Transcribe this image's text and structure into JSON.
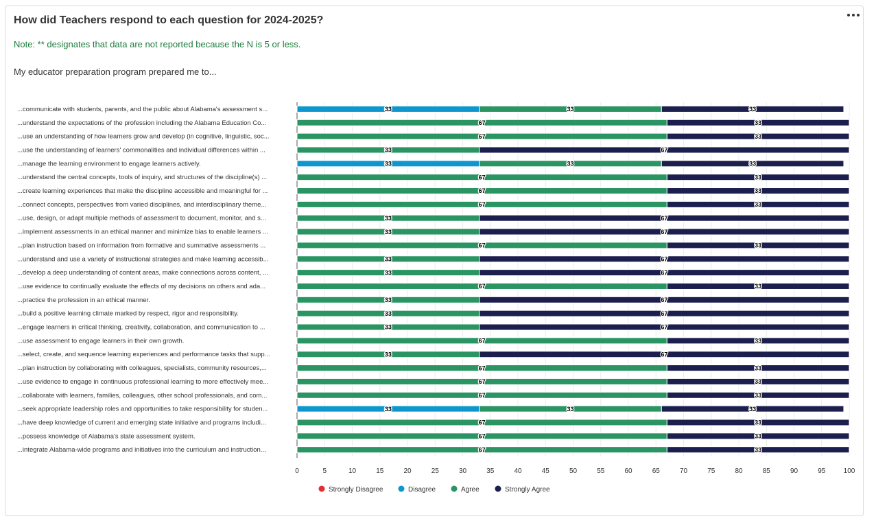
{
  "header": {
    "title": "How did Teachers respond to each question for 2024-2025?",
    "note": "Note: ** designates that data are not reported because the N is 5 or less.",
    "prompt": "My educator preparation program prepared me to..."
  },
  "colors": {
    "strongly_disagree": "#e02f36",
    "disagree": "#0e97cf",
    "agree": "#2a9463",
    "strongly_agree": "#1c1f4d",
    "note": "#1a7a3a"
  },
  "chart_data": {
    "type": "bar",
    "orientation": "horizontal",
    "stacked": true,
    "xlim": [
      0,
      100
    ],
    "xticks": [
      0,
      5,
      10,
      15,
      20,
      25,
      30,
      35,
      40,
      45,
      50,
      55,
      60,
      65,
      70,
      75,
      80,
      85,
      90,
      95,
      100
    ],
    "legend_position": "bottom",
    "categories": [
      "...communicate with students, parents, and the public about Alabama's assessment s...",
      "...understand the expectations of the profession including the Alabama Education Co...",
      "...use an understanding of how learners grow and develop (in cognitive, linguistic, soc...",
      "...use the understanding of learners' commonalities and individual differences within ...",
      "...manage the learning environment to engage learners actively.",
      "...understand the central concepts, tools of inquiry, and structures of the discipline(s) ...",
      "...create learning experiences that make the discipline accessible and meaningful for ...",
      "...connect concepts, perspectives from varied disciplines, and interdisciplinary theme...",
      "...use, design, or adapt multiple methods of assessment to document, monitor, and s...",
      "...implement assessments in an ethical manner and minimize bias to enable learners ...",
      "...plan instruction based on information from formative and summative assessments ...",
      "...understand and use a variety of instructional strategies and make learning accessib...",
      "...develop a deep understanding of content areas, make connections across content, ...",
      "...use evidence to continually evaluate the effects of my decisions on others and ada...",
      "...practice the profession in an ethical manner.",
      "...build a positive learning climate marked by respect, rigor and responsibility.",
      "...engage learners in critical thinking, creativity, collaboration, and communication to ...",
      "...use assessment to engage learners in their own growth.",
      "...select, create, and sequence learning experiences and performance tasks that supp...",
      "...plan instruction by collaborating with colleagues, specialists, community resources,...",
      "...use evidence to engage in continuous professional learning to more effectively mee...",
      "...collaborate with learners, families, colleagues, other school professionals, and com...",
      "...seek appropriate leadership roles and opportunities to take responsibility for studen...",
      "...have deep knowledge of current and emerging state initiative and programs includi...",
      "...possess knowledge of Alabama's state assessment system.",
      "...integrate Alabama-wide programs and initiatives into the curriculum and instruction..."
    ],
    "series": [
      {
        "name": "Strongly Disagree",
        "color_key": "strongly_disagree",
        "values": [
          0,
          0,
          0,
          0,
          0,
          0,
          0,
          0,
          0,
          0,
          0,
          0,
          0,
          0,
          0,
          0,
          0,
          0,
          0,
          0,
          0,
          0,
          0,
          0,
          0,
          0
        ]
      },
      {
        "name": "Disagree",
        "color_key": "disagree",
        "values": [
          33,
          0,
          0,
          0,
          33,
          0,
          0,
          0,
          0,
          0,
          0,
          0,
          0,
          0,
          0,
          0,
          0,
          0,
          0,
          0,
          0,
          0,
          33,
          0,
          0,
          0
        ]
      },
      {
        "name": "Agree",
        "color_key": "agree",
        "values": [
          33,
          67,
          67,
          33,
          33,
          67,
          67,
          67,
          33,
          33,
          67,
          33,
          33,
          67,
          33,
          33,
          33,
          67,
          33,
          67,
          67,
          67,
          33,
          67,
          67,
          67
        ]
      },
      {
        "name": "Strongly Agree",
        "color_key": "strongly_agree",
        "values": [
          33,
          33,
          33,
          67,
          33,
          33,
          33,
          33,
          67,
          67,
          33,
          67,
          67,
          33,
          67,
          67,
          67,
          33,
          67,
          33,
          33,
          33,
          33,
          33,
          33,
          33
        ]
      }
    ]
  }
}
